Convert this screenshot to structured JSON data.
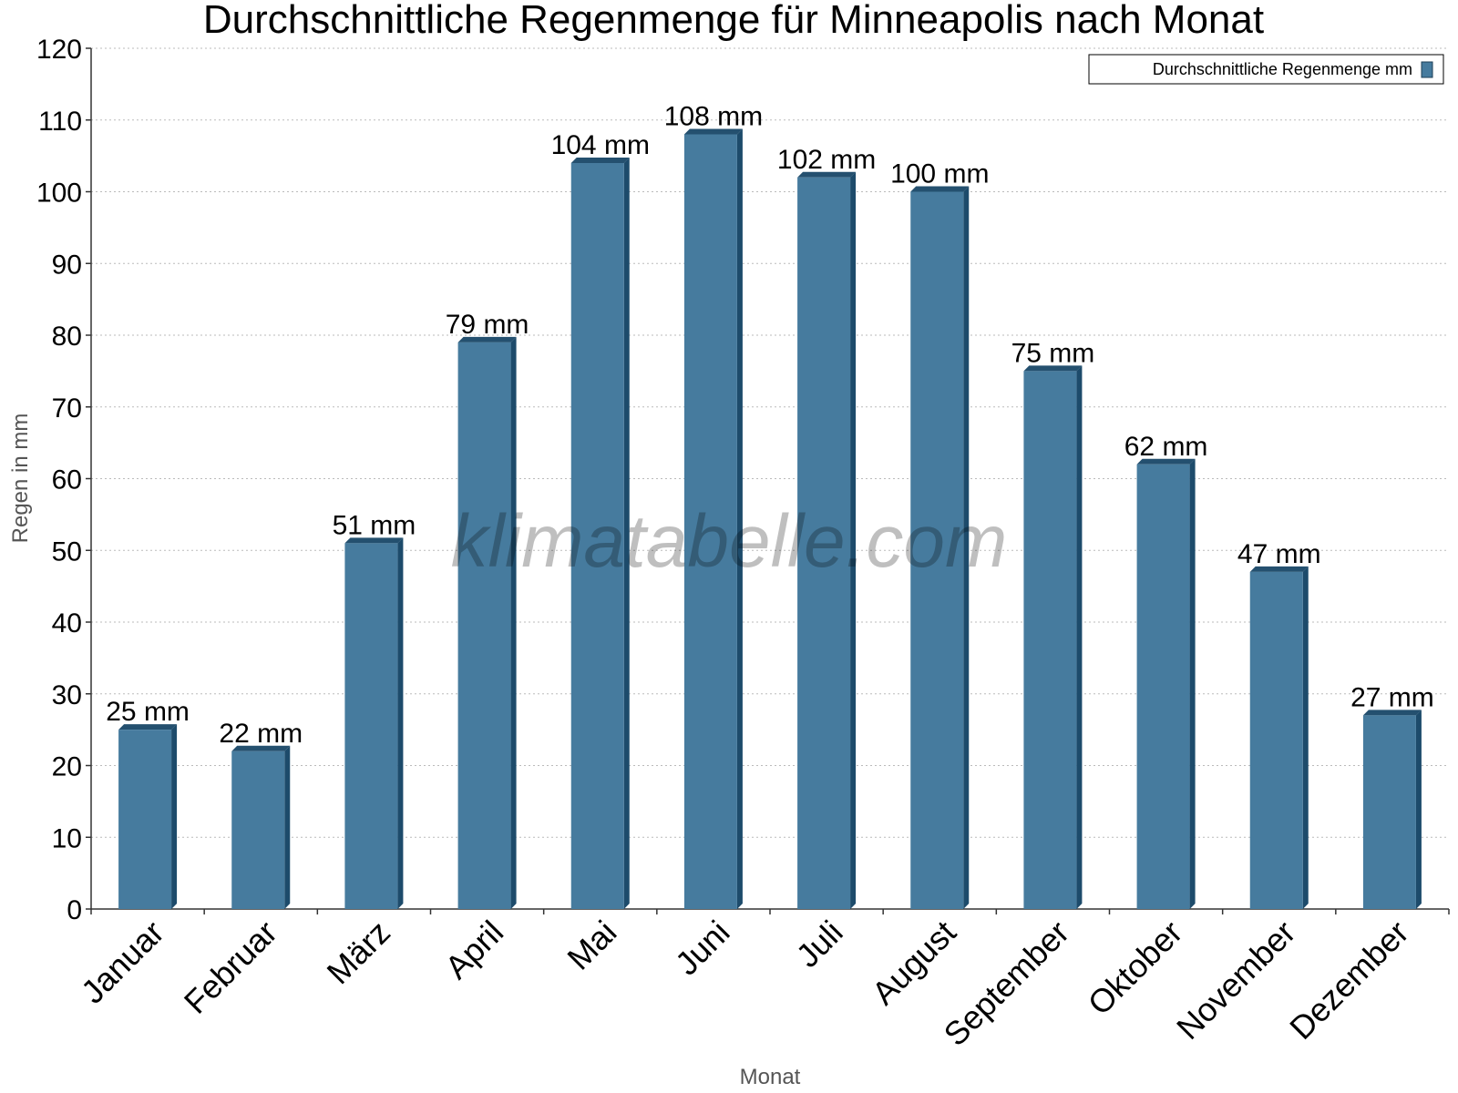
{
  "chart_data": {
    "type": "bar",
    "title": "Durchschnittliche Regenmenge für Minneapolis nach Monat",
    "xlabel": "Monat",
    "ylabel": "Regen in mm",
    "ylim": [
      0,
      120
    ],
    "yticks": [
      "0",
      "10",
      "20",
      "30",
      "40",
      "50",
      "60",
      "70",
      "80",
      "90",
      "100",
      "110",
      "120"
    ],
    "grid": true,
    "legend_position": "top-right",
    "watermark": "klimatabelle.com",
    "categories": [
      "Januar",
      "Februar",
      "März",
      "April",
      "Mai",
      "Juni",
      "Juli",
      "August",
      "September",
      "Oktober",
      "November",
      "Dezember"
    ],
    "series": [
      {
        "name": "Durchschnittliche Regenmenge mm",
        "color": "#467b9e",
        "values": [
          25,
          22,
          51,
          79,
          104,
          108,
          102,
          100,
          75,
          62,
          47,
          27
        ],
        "labels": [
          "25 mm",
          "22 mm",
          "51 mm",
          "79 mm",
          "104 mm",
          "108 mm",
          "102 mm",
          "100 mm",
          "75 mm",
          "62 mm",
          "47 mm",
          "27 mm"
        ]
      }
    ]
  }
}
